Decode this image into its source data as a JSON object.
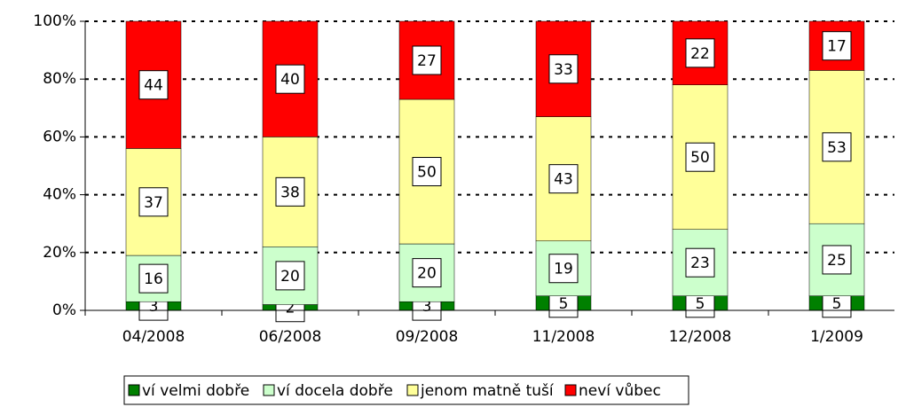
{
  "chart_data": {
    "type": "stacked_bar",
    "categories": [
      "04/2008",
      "06/2008",
      "09/2008",
      "11/2008",
      "12/2008",
      "1/2009"
    ],
    "series": [
      {
        "name": "ví velmi dobře",
        "color": "#008000",
        "values": [
          3,
          2,
          3,
          5,
          5,
          5
        ]
      },
      {
        "name": "ví docela dobře",
        "color": "#ccffcc",
        "values": [
          16,
          20,
          20,
          19,
          23,
          25
        ]
      },
      {
        "name": "jenom matně tuší",
        "color": "#ffff99",
        "values": [
          37,
          38,
          50,
          43,
          50,
          53
        ]
      },
      {
        "name": "neví vůbec",
        "color": "#ff0000",
        "values": [
          44,
          40,
          27,
          33,
          22,
          17
        ]
      }
    ],
    "ylim": [
      0,
      100
    ],
    "yticks": [
      {
        "value": 0,
        "label": "0%"
      },
      {
        "value": 20,
        "label": "20%"
      },
      {
        "value": 40,
        "label": "40%"
      },
      {
        "value": 60,
        "label": "60%"
      },
      {
        "value": 80,
        "label": "80%"
      },
      {
        "value": 100,
        "label": "100%"
      }
    ],
    "grid": true,
    "legend": "bottom"
  }
}
